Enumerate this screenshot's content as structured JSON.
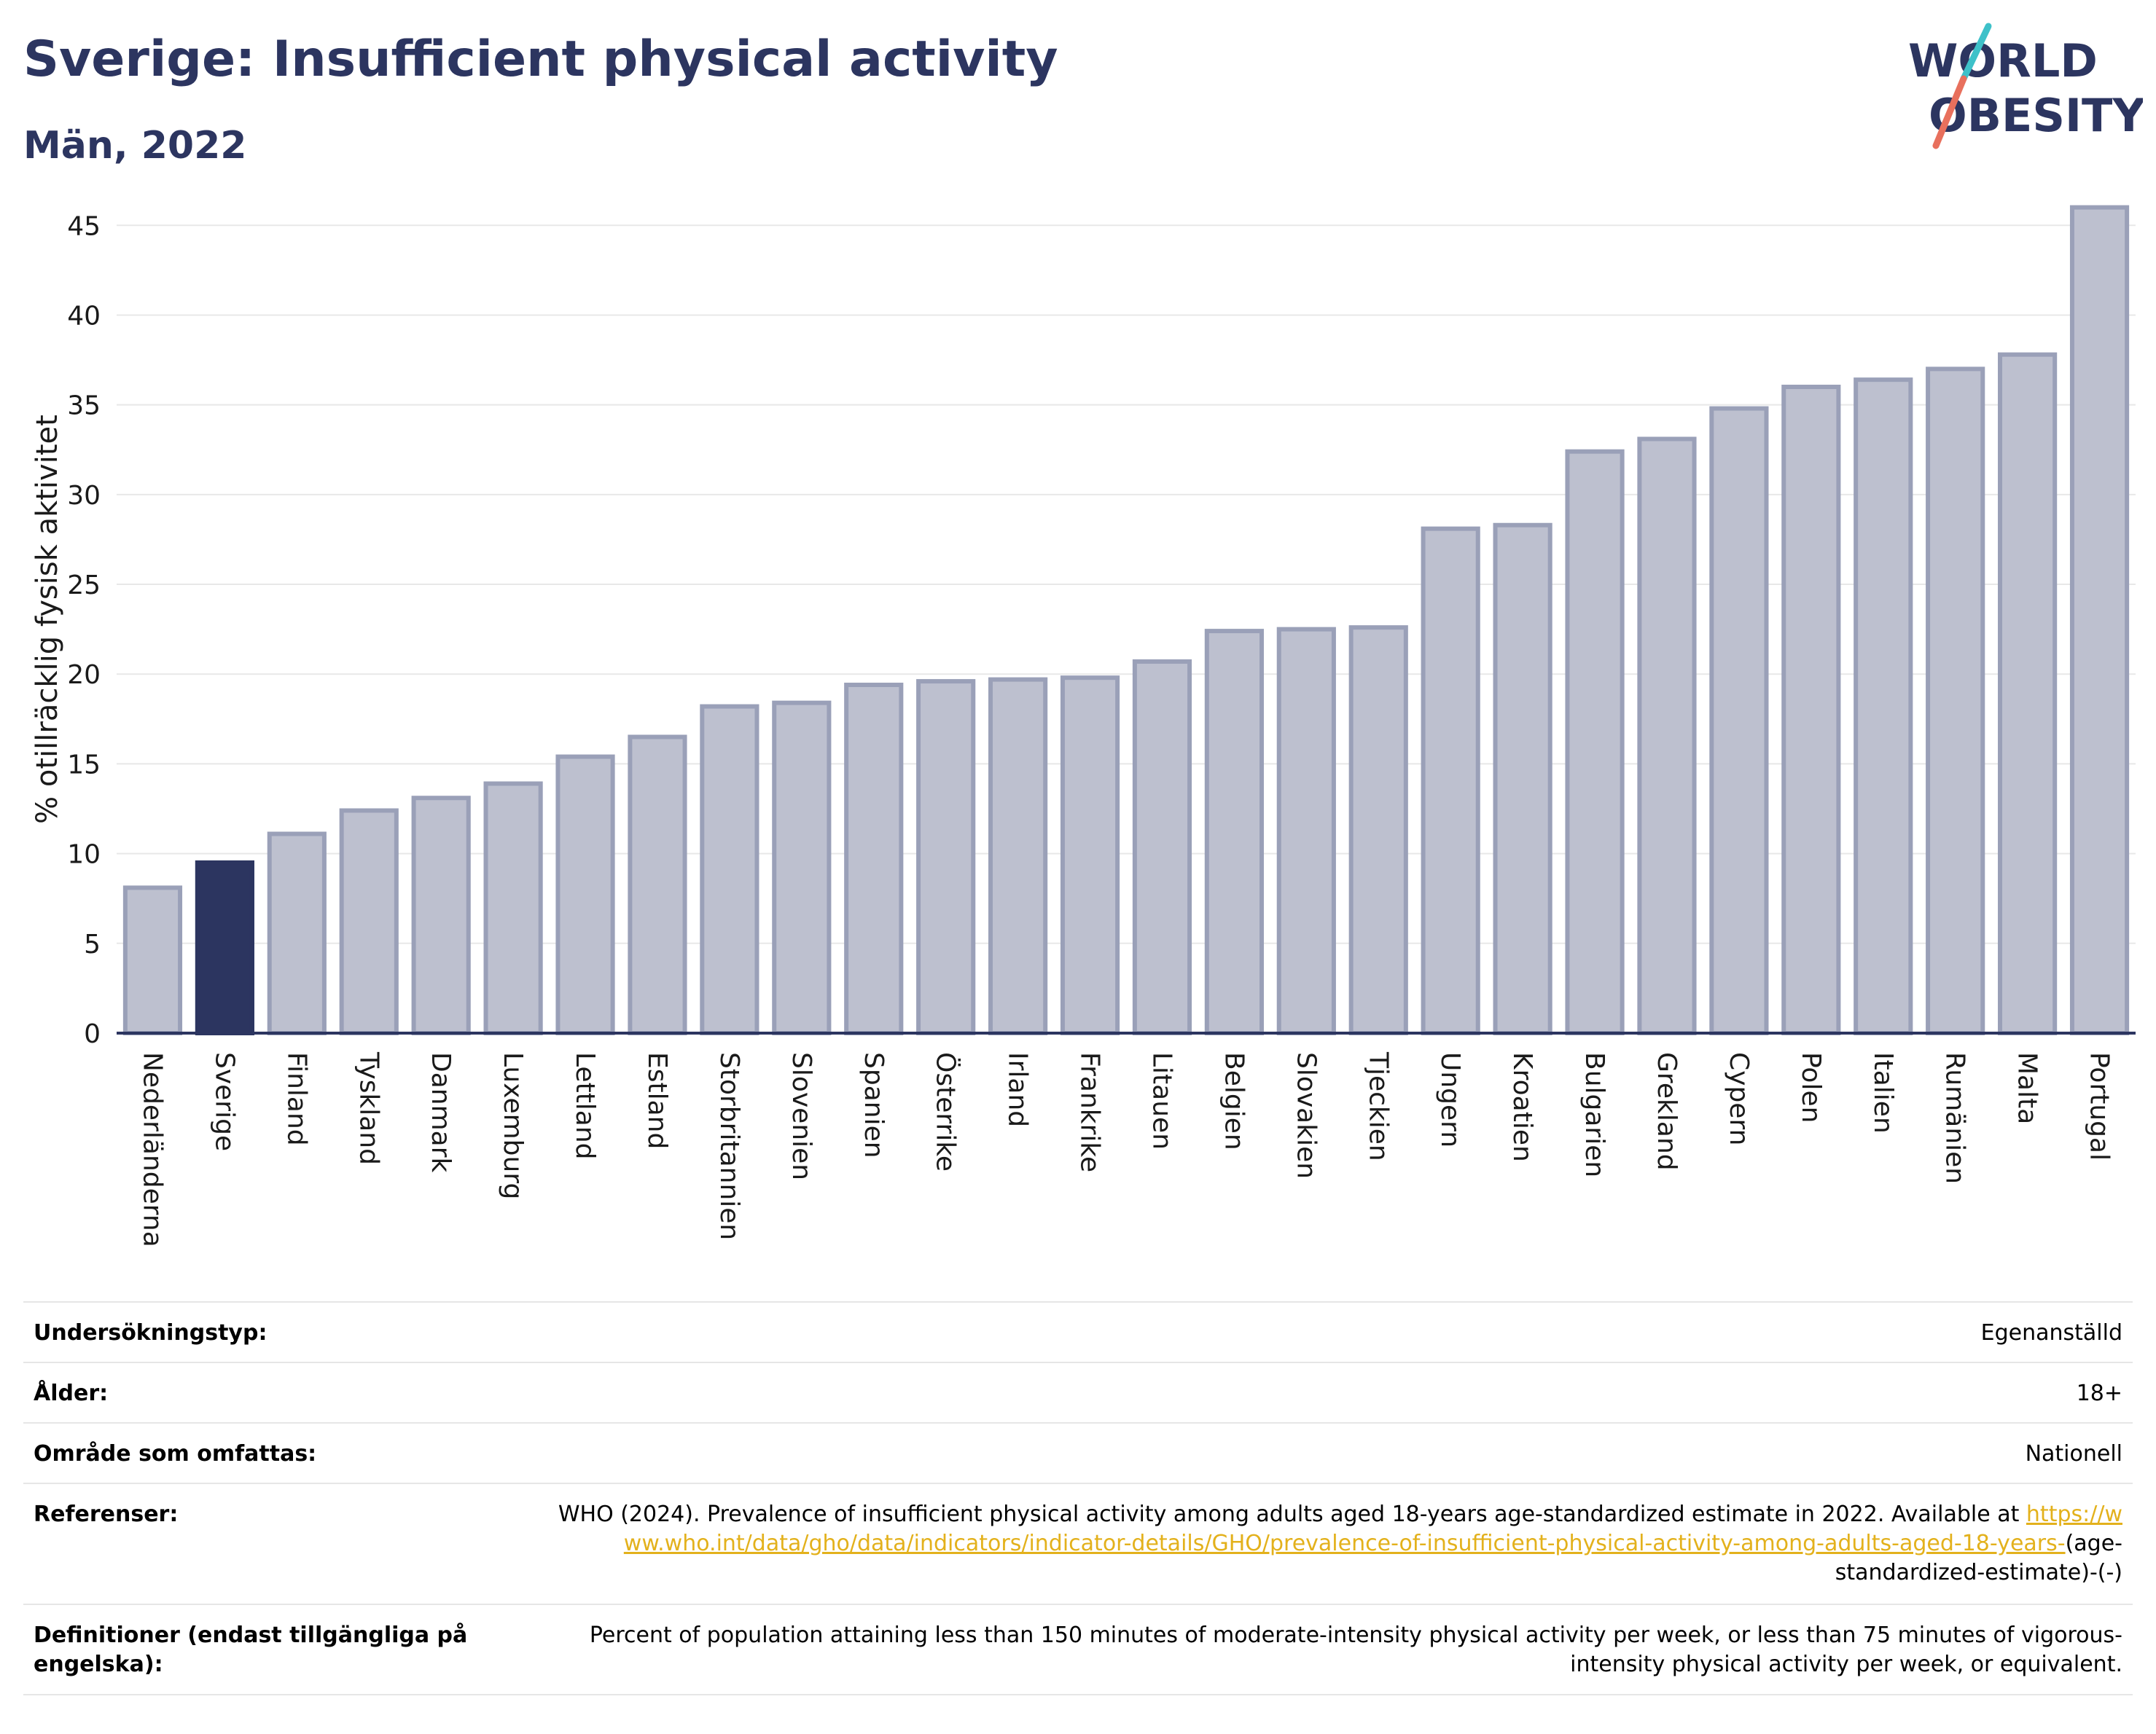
{
  "header": {
    "title": "Sverige: Insufficient physical activity",
    "subtitle": "Män, 2022",
    "logo_line1": "WORLD",
    "logo_line2": "OBESITY"
  },
  "colors": {
    "title": "#2c3560",
    "bar": "#bdc0cf",
    "bar_border": "#9aa0b8",
    "bar_highlight": "#2c3560",
    "link": "#e3b11c",
    "logo_teal": "#3ec1c9",
    "logo_coral": "#e8705d"
  },
  "chart_data": {
    "type": "bar",
    "ylabel": "% otillräcklig fysisk aktivitet",
    "xlabel": "",
    "ylim": [
      0,
      47
    ],
    "yticks": [
      0,
      5,
      10,
      15,
      20,
      25,
      30,
      35,
      40,
      45
    ],
    "grid": true,
    "highlight": "Sverige",
    "categories": [
      "Nederländerna",
      "Sverige",
      "Finland",
      "Tyskland",
      "Danmark",
      "Luxemburg",
      "Lettland",
      "Estland",
      "Storbritannien",
      "Slovenien",
      "Spanien",
      "Österrike",
      "Irland",
      "Frankrike",
      "Litauen",
      "Belgien",
      "Slovakien",
      "Tjeckien",
      "Ungern",
      "Kroatien",
      "Bulgarien",
      "Grekland",
      "Cypern",
      "Polen",
      "Italien",
      "Rumänien",
      "Malta",
      "Portugal"
    ],
    "values": [
      8.1,
      9.5,
      11.1,
      12.4,
      13.1,
      13.9,
      15.4,
      16.5,
      18.2,
      18.4,
      19.4,
      19.6,
      19.7,
      19.8,
      20.7,
      22.4,
      22.5,
      22.6,
      28.1,
      28.3,
      32.4,
      33.1,
      34.8,
      36.0,
      36.4,
      37.0,
      37.8,
      46.0
    ]
  },
  "info": {
    "survey_type": {
      "label": "Undersökningstyp:",
      "value": "Egenanställd"
    },
    "age": {
      "label": "Ålder:",
      "value": "18+"
    },
    "area": {
      "label": "Område som omfattas:",
      "value": "Nationell"
    },
    "references": {
      "label": "Referenser:",
      "text": "WHO (2024). Prevalence of insufficient physical activity among adults aged 18-years age-standardized estimate in 2022. Available at",
      "link": "https://www.who.int/data/gho/data/indicators/indicator-details/GHO/prevalence-of-insufficient-physical-activity-among-adults-aged-18-years-",
      "suffix": "(age-standardized-estimate)-(-)"
    },
    "definitions": {
      "label": "Definitioner (endast tillgängliga på engelska):",
      "value": "Percent of population attaining less than 150 minutes of moderate-intensity physical activity per week, or less than 75 minutes of vigorous-intensity physical activity per week, or equivalent."
    }
  }
}
